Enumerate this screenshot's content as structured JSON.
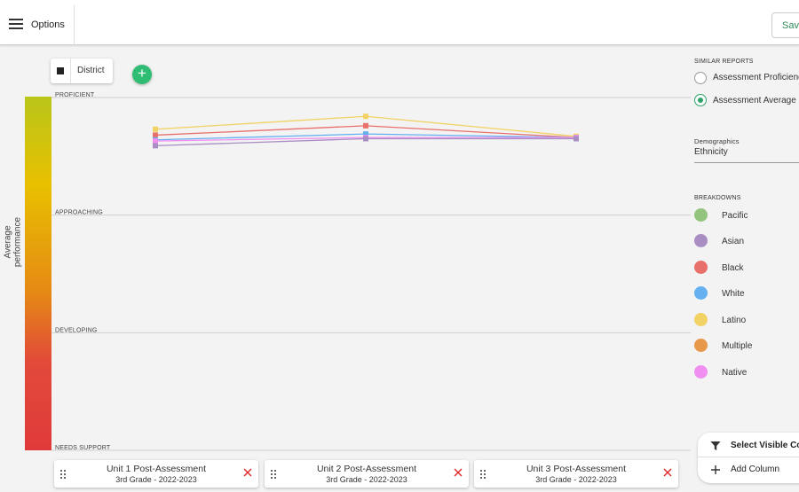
{
  "header": {
    "options_label": "Options",
    "save_label": "Save"
  },
  "toolbar": {
    "district_label": "District",
    "add_label": "+"
  },
  "chart": {
    "y_axis_title": "Average performance",
    "bands": [
      "PROFICIENT",
      "APPROACHING",
      "DEVELOPING",
      "NEEDS SUPPORT"
    ],
    "gradient_colors": [
      "#b9c61a",
      "#e8c000",
      "#e58a14",
      "#df3a3a"
    ]
  },
  "chart_data": {
    "type": "line",
    "ylabel": "Average performance",
    "x": [
      "Unit 1 Post-Assessment",
      "Unit 2 Post-Assessment",
      "Unit 3 Post-Assessment"
    ],
    "y_categories": [
      "NEEDS SUPPORT",
      "DEVELOPING",
      "APPROACHING",
      "PROFICIENT"
    ],
    "ylim": [
      0,
      4
    ],
    "series": [
      {
        "name": "Latino",
        "color": "#f2d264",
        "values": [
          3.73,
          3.84,
          3.67
        ]
      },
      {
        "name": "Black",
        "color": "#e8706b",
        "values": [
          3.68,
          3.76,
          3.66
        ]
      },
      {
        "name": "White",
        "color": "#64b0f0",
        "values": [
          3.64,
          3.69,
          3.66
        ]
      },
      {
        "name": "Native",
        "color": "#f08ff0",
        "values": [
          3.63,
          3.66,
          3.66
        ]
      },
      {
        "name": "Asian",
        "color": "#a98ec4",
        "values": [
          3.59,
          3.65,
          3.65
        ]
      }
    ]
  },
  "columns": [
    {
      "title": "Unit 1 Post-Assessment",
      "subtitle": "3rd Grade - 2022-2023"
    },
    {
      "title": "Unit 2 Post-Assessment",
      "subtitle": "3rd Grade - 2022-2023"
    },
    {
      "title": "Unit 3 Post-Assessment",
      "subtitle": "3rd Grade - 2022-2023"
    }
  ],
  "sidebar": {
    "similar_reports_title": "SIMILAR REPORTS",
    "reports": [
      {
        "label": "Assessment Proficiency",
        "selected": false
      },
      {
        "label": "Assessment Average",
        "selected": true
      }
    ],
    "demographics_title": "Demographics",
    "demographics_value": "Ethnicity",
    "breakdowns_title": "BREAKDOWNS",
    "breakdowns": [
      {
        "label": "Pacific",
        "color": "#93c47d"
      },
      {
        "label": "Asian",
        "color": "#a98ec4"
      },
      {
        "label": "Black",
        "color": "#e8706b"
      },
      {
        "label": "White",
        "color": "#64b0f0"
      },
      {
        "label": "Latino",
        "color": "#f2d264"
      },
      {
        "label": "Multiple",
        "color": "#e8984a"
      },
      {
        "label": "Native",
        "color": "#f08ff0"
      }
    ]
  },
  "actions": {
    "select_visible_label": "Select Visible Columns",
    "add_column_label": "Add Column"
  }
}
